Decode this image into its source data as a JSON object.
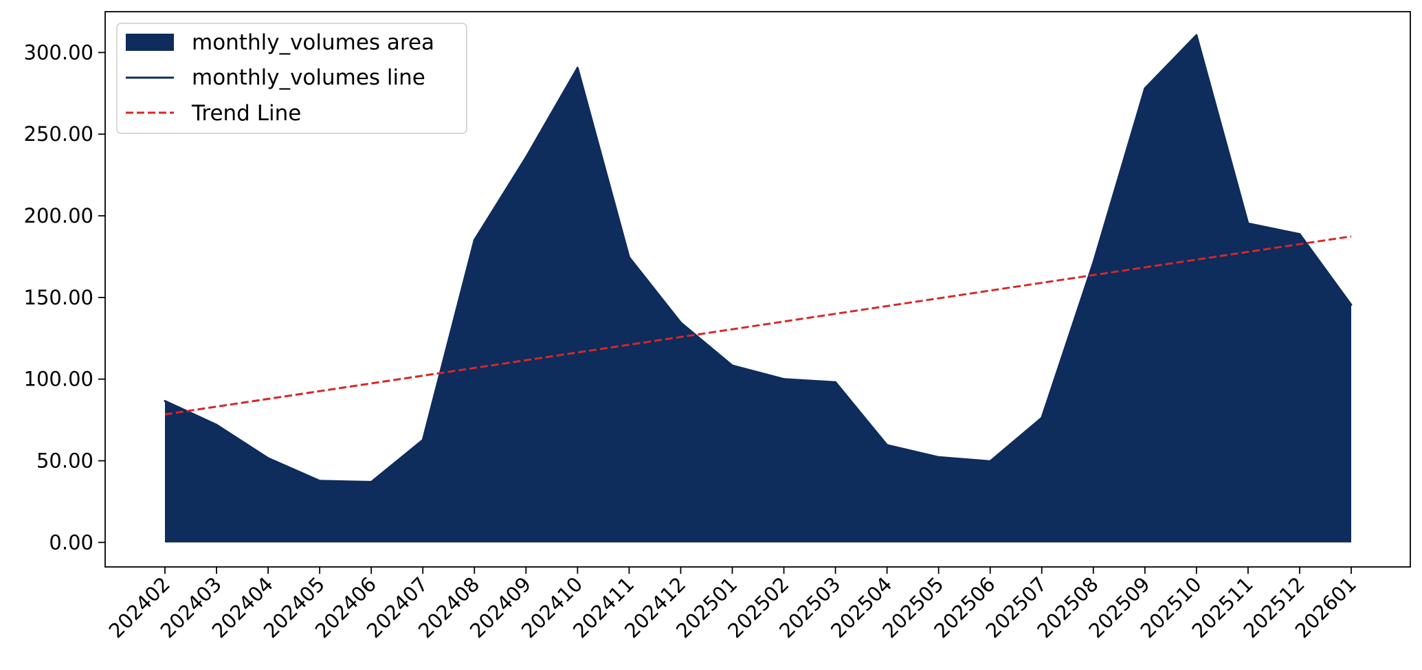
{
  "chart_data": {
    "type": "area",
    "title": "",
    "xlabel": "",
    "ylabel": "",
    "categories": [
      "202402",
      "202403",
      "202404",
      "202405",
      "202406",
      "202407",
      "202408",
      "202409",
      "202410",
      "202411",
      "202412",
      "202501",
      "202502",
      "202503",
      "202504",
      "202505",
      "202506",
      "202507",
      "202508",
      "202509",
      "202510",
      "202511",
      "202512",
      "202601"
    ],
    "series": [
      {
        "name": "monthly_volumes area",
        "kind": "area",
        "color": "#0e2c5c",
        "values": [
          86.6,
          72.0,
          51.6,
          37.7,
          37.0,
          62.7,
          185.1,
          235.8,
          290.6,
          174.6,
          134.6,
          108.3,
          100.0,
          98.1,
          59.6,
          52.2,
          49.7,
          76.3,
          171.3,
          278.0,
          310.6,
          195.3,
          188.8,
          145.5
        ]
      },
      {
        "name": "monthly_volumes line",
        "kind": "line",
        "color": "#0e2c5c",
        "values": [
          86.6,
          72.0,
          51.6,
          37.7,
          37.0,
          62.7,
          185.1,
          235.8,
          290.6,
          174.6,
          134.6,
          108.3,
          100.0,
          98.1,
          59.6,
          52.2,
          49.7,
          76.3,
          171.3,
          278.0,
          310.6,
          195.3,
          188.8,
          145.5
        ]
      },
      {
        "name": "Trend Line",
        "kind": "dashed-line",
        "color": "#d62728",
        "start": 78.4,
        "end": 187.4
      }
    ],
    "ylim": [
      -15,
      325
    ],
    "yticks": [
      0,
      50,
      100,
      150,
      200,
      250,
      300
    ],
    "ytick_labels": [
      "0.00",
      "50.00",
      "100.00",
      "150.00",
      "200.00",
      "250.00",
      "300.00"
    ],
    "xtick_rotation": 45,
    "grid": false,
    "legend": {
      "position": "top-left",
      "entries": [
        {
          "label": "monthly_volumes area",
          "kind": "patch",
          "color": "#0e2c5c"
        },
        {
          "label": "monthly_volumes line",
          "kind": "line",
          "color": "#0e2c5c"
        },
        {
          "label": "Trend Line",
          "kind": "dashed",
          "color": "#d62728"
        }
      ]
    }
  }
}
